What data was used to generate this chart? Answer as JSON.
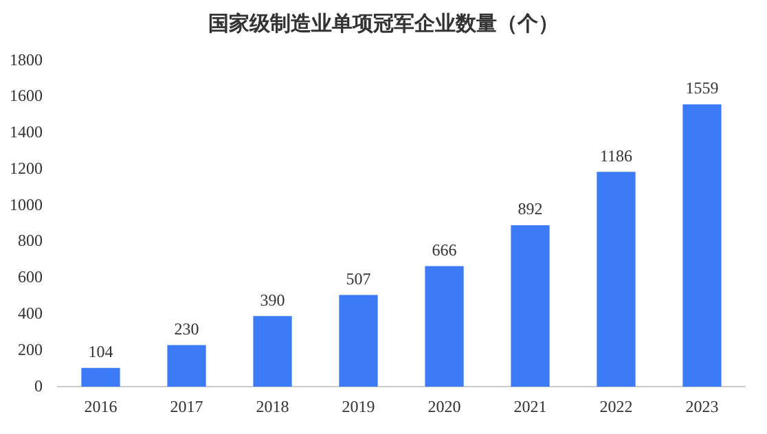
{
  "chart_data": {
    "type": "bar",
    "title": "国家级制造业单项冠军企业数量（个）",
    "categories": [
      "2016",
      "2017",
      "2018",
      "2019",
      "2020",
      "2021",
      "2022",
      "2023"
    ],
    "values": [
      104,
      230,
      390,
      507,
      666,
      892,
      1186,
      1559
    ],
    "color": "#3d7af5",
    "ylim": [
      0,
      1800
    ],
    "yticks": [
      0,
      200,
      400,
      600,
      800,
      1000,
      1200,
      1400,
      1600,
      1800
    ],
    "data_labels": true
  }
}
